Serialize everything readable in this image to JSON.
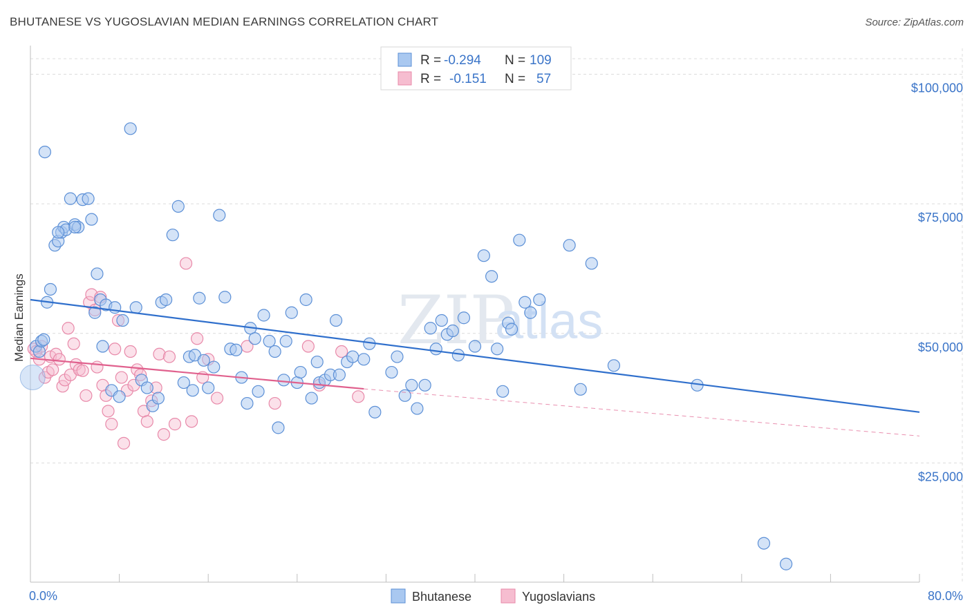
{
  "title": "BHUTANESE VS YUGOSLAVIAN MEDIAN EARNINGS CORRELATION CHART",
  "source": "Source: ZipAtlas.com",
  "watermark": {
    "zip": "ZIP",
    "atlas": "atlas"
  },
  "colors": {
    "blue_fill": "#a9c8f0",
    "blue_stroke": "#5b8fd6",
    "blue_line": "#2f6fcc",
    "pink_fill": "#f6bdd0",
    "pink_stroke": "#e889a9",
    "pink_line": "#e0608d",
    "grid": "#dcdcdc",
    "label": "#3a74c8"
  },
  "legend": {
    "r_label": "R =",
    "n_label": "N =",
    "rows": [
      {
        "series": "Bhutanese",
        "r": "-0.294",
        "n": "109"
      },
      {
        "series": "Yugoslavians",
        "r": "-0.151",
        "n": "57"
      }
    ]
  },
  "chart_data": {
    "type": "scatter",
    "title": "BHUTANESE VS YUGOSLAVIAN MEDIAN EARNINGS CORRELATION CHART",
    "xlabel": "",
    "ylabel": "Median Earnings",
    "xlim": [
      0,
      80
    ],
    "ylim": [
      2000,
      105000
    ],
    "x_tick_labels": [
      "0.0%",
      "80.0%"
    ],
    "y_ticks": [
      25000,
      50000,
      75000,
      100000
    ],
    "y_tick_labels": [
      "$25,000",
      "$50,000",
      "$75,000",
      "$100,000"
    ],
    "grid": true,
    "legend_placement": "top-center",
    "series": [
      {
        "name": "Bhutanese",
        "trend": {
          "x": [
            0,
            80
          ],
          "y": [
            56500,
            34800
          ]
        },
        "points": [
          [
            0.5,
            47500
          ],
          [
            0.8,
            46500
          ],
          [
            1.0,
            48500
          ],
          [
            1.2,
            48800
          ],
          [
            1.5,
            56000
          ],
          [
            1.8,
            58500
          ],
          [
            2.2,
            67000
          ],
          [
            2.5,
            67800
          ],
          [
            2.8,
            69500
          ],
          [
            3.0,
            70500
          ],
          [
            3.2,
            70000
          ],
          [
            3.6,
            76000
          ],
          [
            4.0,
            71000
          ],
          [
            4.3,
            70500
          ],
          [
            4.7,
            75800
          ],
          [
            5.2,
            76000
          ],
          [
            5.5,
            72000
          ],
          [
            5.8,
            54000
          ],
          [
            6.0,
            61500
          ],
          [
            6.3,
            56500
          ],
          [
            6.5,
            47500
          ],
          [
            6.8,
            55500
          ],
          [
            7.3,
            39000
          ],
          [
            7.6,
            55000
          ],
          [
            8.0,
            37800
          ],
          [
            8.3,
            52500
          ],
          [
            9.0,
            89500
          ],
          [
            9.5,
            55000
          ],
          [
            10.0,
            41000
          ],
          [
            10.5,
            39500
          ],
          [
            11.0,
            36000
          ],
          [
            11.5,
            37500
          ],
          [
            11.8,
            56000
          ],
          [
            12.2,
            56500
          ],
          [
            12.8,
            69000
          ],
          [
            13.3,
            74500
          ],
          [
            13.8,
            40500
          ],
          [
            14.3,
            45500
          ],
          [
            14.6,
            39000
          ],
          [
            14.8,
            45800
          ],
          [
            15.2,
            56800
          ],
          [
            15.6,
            44800
          ],
          [
            16.0,
            39500
          ],
          [
            16.5,
            43500
          ],
          [
            17.0,
            72800
          ],
          [
            17.5,
            57000
          ],
          [
            18.0,
            47000
          ],
          [
            18.5,
            46800
          ],
          [
            19.0,
            41500
          ],
          [
            19.5,
            36500
          ],
          [
            19.8,
            51000
          ],
          [
            20.2,
            49000
          ],
          [
            20.5,
            38800
          ],
          [
            21.0,
            53500
          ],
          [
            21.5,
            48500
          ],
          [
            22.0,
            46500
          ],
          [
            22.3,
            31800
          ],
          [
            22.8,
            41000
          ],
          [
            23.0,
            48500
          ],
          [
            23.5,
            54000
          ],
          [
            24.0,
            40500
          ],
          [
            24.3,
            42500
          ],
          [
            24.8,
            56500
          ],
          [
            25.3,
            37500
          ],
          [
            25.8,
            44500
          ],
          [
            26.0,
            40500
          ],
          [
            26.5,
            41000
          ],
          [
            27.0,
            42000
          ],
          [
            27.5,
            52500
          ],
          [
            27.8,
            42000
          ],
          [
            28.5,
            44500
          ],
          [
            29.0,
            45500
          ],
          [
            30.0,
            45000
          ],
          [
            30.5,
            48000
          ],
          [
            31.0,
            34800
          ],
          [
            32.5,
            42500
          ],
          [
            33.0,
            45500
          ],
          [
            33.7,
            38000
          ],
          [
            34.3,
            40000
          ],
          [
            34.8,
            35500
          ],
          [
            35.5,
            40000
          ],
          [
            36.0,
            51000
          ],
          [
            36.5,
            47000
          ],
          [
            37.0,
            52500
          ],
          [
            37.5,
            49800
          ],
          [
            38.0,
            50500
          ],
          [
            38.5,
            45800
          ],
          [
            39.0,
            53000
          ],
          [
            40.0,
            47500
          ],
          [
            40.8,
            65000
          ],
          [
            41.5,
            61000
          ],
          [
            42.0,
            47000
          ],
          [
            42.5,
            38800
          ],
          [
            43.0,
            52000
          ],
          [
            43.3,
            50800
          ],
          [
            44.0,
            68000
          ],
          [
            44.5,
            56000
          ],
          [
            45.0,
            54000
          ],
          [
            45.8,
            56500
          ],
          [
            48.5,
            67000
          ],
          [
            49.5,
            39200
          ],
          [
            50.5,
            63500
          ],
          [
            52.5,
            43800
          ],
          [
            66.0,
            9500
          ],
          [
            68.0,
            5500
          ],
          [
            1.3,
            85000
          ],
          [
            2.5,
            69500
          ],
          [
            4.0,
            70500
          ],
          [
            60.0,
            40000
          ]
        ]
      },
      {
        "name": "Yugoslavians",
        "trend": {
          "x": [
            0,
            30
          ],
          "y": [
            45200,
            39300
          ]
        },
        "trend_extension": {
          "x": [
            30,
            80
          ],
          "y": [
            39300,
            30200
          ]
        },
        "points": [
          [
            0.3,
            47000
          ],
          [
            0.5,
            46500
          ],
          [
            0.8,
            45000
          ],
          [
            1.0,
            47500
          ],
          [
            1.3,
            41500
          ],
          [
            1.6,
            42500
          ],
          [
            1.8,
            45500
          ],
          [
            2.0,
            43000
          ],
          [
            2.3,
            46000
          ],
          [
            2.6,
            45000
          ],
          [
            2.9,
            39800
          ],
          [
            3.1,
            41000
          ],
          [
            3.4,
            51000
          ],
          [
            3.6,
            42000
          ],
          [
            3.9,
            48000
          ],
          [
            4.1,
            44000
          ],
          [
            4.4,
            43000
          ],
          [
            4.7,
            42800
          ],
          [
            5.0,
            38000
          ],
          [
            5.3,
            56000
          ],
          [
            5.5,
            57500
          ],
          [
            5.8,
            54500
          ],
          [
            6.0,
            43500
          ],
          [
            6.3,
            57000
          ],
          [
            6.5,
            40000
          ],
          [
            6.8,
            38000
          ],
          [
            7.0,
            35000
          ],
          [
            7.3,
            32500
          ],
          [
            7.6,
            47000
          ],
          [
            7.9,
            52500
          ],
          [
            8.2,
            41500
          ],
          [
            8.4,
            28800
          ],
          [
            8.7,
            39000
          ],
          [
            9.0,
            46500
          ],
          [
            9.3,
            40000
          ],
          [
            9.6,
            43000
          ],
          [
            9.9,
            42000
          ],
          [
            10.2,
            35000
          ],
          [
            10.5,
            33000
          ],
          [
            10.9,
            37000
          ],
          [
            11.3,
            39500
          ],
          [
            11.6,
            46000
          ],
          [
            12.0,
            30500
          ],
          [
            12.5,
            45500
          ],
          [
            13.0,
            32500
          ],
          [
            14.0,
            63500
          ],
          [
            14.5,
            33000
          ],
          [
            15.0,
            49000
          ],
          [
            15.5,
            41500
          ],
          [
            16.0,
            45000
          ],
          [
            16.8,
            37500
          ],
          [
            19.5,
            47500
          ],
          [
            22.0,
            36500
          ],
          [
            25.0,
            47500
          ],
          [
            26.0,
            40000
          ],
          [
            28.0,
            46500
          ],
          [
            29.5,
            37800
          ]
        ]
      }
    ]
  },
  "bottom_legend": [
    "Bhutanese",
    "Yugoslavians"
  ]
}
